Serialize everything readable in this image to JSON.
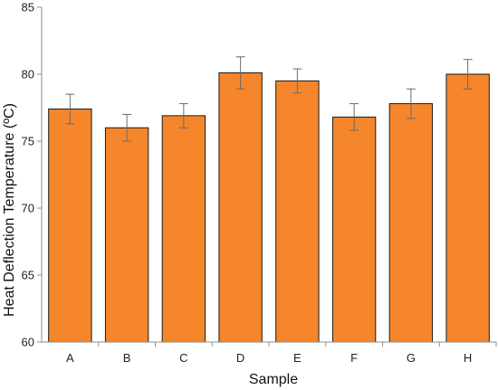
{
  "chart_data": {
    "type": "bar",
    "title": "",
    "xlabel": "Sample",
    "ylabel": "Heat Deflection Temperature (ºC)",
    "categories": [
      "A",
      "B",
      "C",
      "D",
      "E",
      "F",
      "G",
      "H"
    ],
    "values": [
      77.4,
      76.0,
      76.9,
      80.1,
      79.5,
      76.8,
      77.8,
      80.0
    ],
    "error": [
      1.1,
      1.0,
      0.9,
      1.2,
      0.9,
      1.0,
      1.1,
      1.1
    ],
    "ylim": [
      60,
      85
    ],
    "yticks": [
      60,
      65,
      70,
      75,
      80,
      85
    ],
    "grid": false,
    "legend": "none"
  },
  "colors": {
    "bar_fill": "#f5862b",
    "bar_stroke": "#1a1a1a",
    "axis": "#8c8c8c",
    "error_bar": "#6b6b6b"
  }
}
